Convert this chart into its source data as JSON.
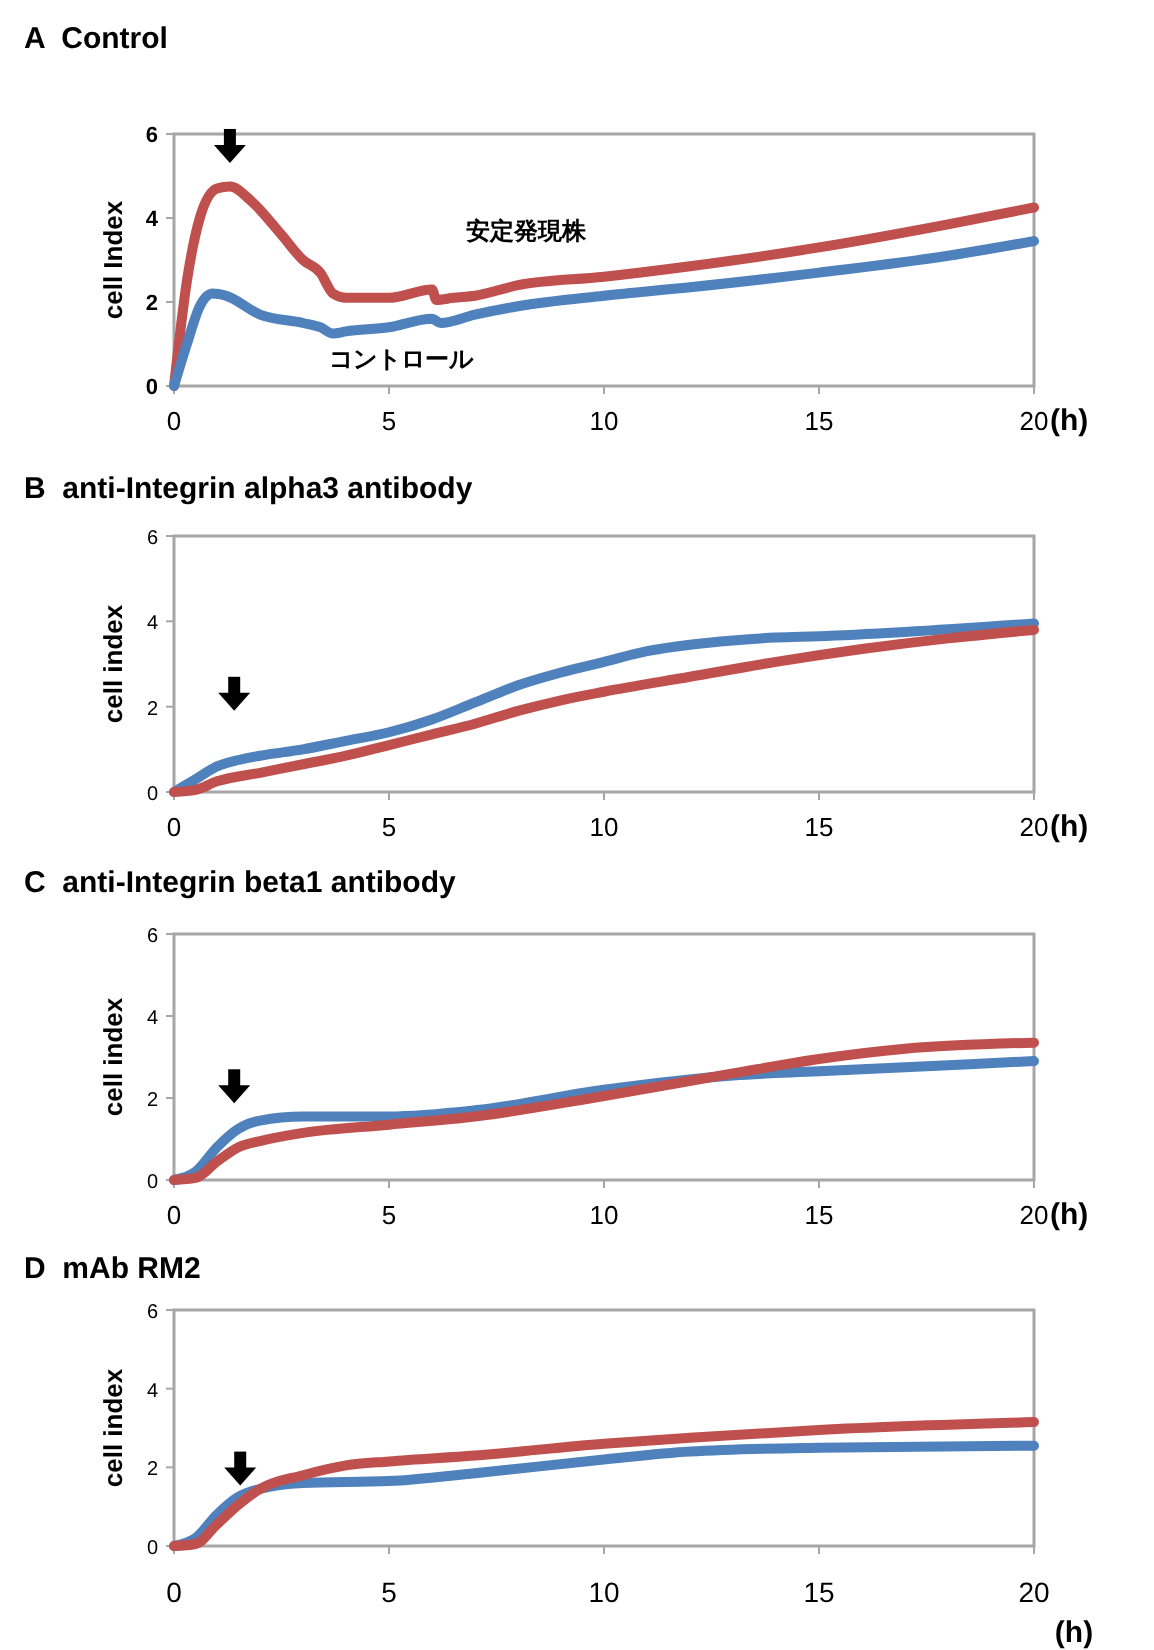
{
  "chart_data": [
    {
      "type": "line",
      "title": "A  Control",
      "xlabel": "(h)",
      "ylabel": "cell Index",
      "xlim": [
        0,
        20
      ],
      "xticks": [
        0,
        5,
        10,
        15,
        20
      ],
      "ylim": [
        0,
        6
      ],
      "yticks": [
        0,
        2,
        4,
        6
      ],
      "grid": false,
      "legend": false,
      "series": [
        {
          "name": "安定発現株",
          "color": "#c0504d",
          "x": [
            0,
            0.3,
            0.6,
            1.0,
            1.3,
            1.8,
            2.5,
            3.0,
            3.4,
            3.7,
            4,
            5,
            6,
            6.1,
            6.5,
            7,
            8,
            10,
            12,
            15,
            18,
            20
          ],
          "values": [
            0,
            2.5,
            4.0,
            4.7,
            4.75,
            4.4,
            3.6,
            3.0,
            2.7,
            2.2,
            2.1,
            2.1,
            2.3,
            2.05,
            2.1,
            2.15,
            2.4,
            2.6,
            2.85,
            3.3,
            3.85,
            4.25
          ]
        },
        {
          "name": "コントロール",
          "color": "#4f81bd",
          "x": [
            0,
            0.3,
            0.6,
            0.9,
            1.2,
            2,
            3,
            3.4,
            3.7,
            4,
            5,
            6,
            6.2,
            7,
            8,
            10,
            12,
            15,
            18,
            20
          ],
          "values": [
            0,
            1.0,
            1.9,
            2.2,
            2.15,
            1.7,
            1.5,
            1.4,
            1.25,
            1.3,
            1.4,
            1.6,
            1.5,
            1.7,
            1.9,
            2.15,
            2.35,
            2.7,
            3.1,
            3.45
          ]
        }
      ]
    },
    {
      "type": "line",
      "title": "B  anti-Integrin alpha3 antibody",
      "xlabel": "(h)",
      "ylabel": "cell index",
      "xlim": [
        0,
        20
      ],
      "xticks": [
        0,
        5,
        10,
        15,
        20
      ],
      "ylim": [
        0,
        6
      ],
      "yticks": [
        0,
        2,
        4,
        6
      ],
      "grid": false,
      "legend": false,
      "series": [
        {
          "color": "#4f81bd",
          "x": [
            0,
            0.5,
            1,
            1.5,
            2,
            3,
            4,
            5,
            6,
            7,
            8,
            9,
            10,
            11,
            12,
            13,
            14,
            15,
            17,
            20
          ],
          "values": [
            0,
            0.3,
            0.6,
            0.75,
            0.85,
            1.0,
            1.2,
            1.4,
            1.7,
            2.1,
            2.5,
            2.8,
            3.05,
            3.3,
            3.45,
            3.55,
            3.62,
            3.65,
            3.75,
            3.95
          ]
        },
        {
          "color": "#c0504d",
          "x": [
            0,
            0.5,
            1,
            2,
            3,
            4,
            5,
            6,
            7,
            8,
            9,
            10,
            12,
            14,
            16,
            18,
            20
          ],
          "values": [
            0,
            0.05,
            0.25,
            0.45,
            0.65,
            0.85,
            1.1,
            1.35,
            1.6,
            1.9,
            2.15,
            2.35,
            2.7,
            3.05,
            3.35,
            3.6,
            3.8
          ]
        }
      ]
    },
    {
      "type": "line",
      "title": "C  anti-Integrin beta1 antibody",
      "xlabel": "(h)",
      "ylabel": "cell index",
      "xlim": [
        0,
        20
      ],
      "xticks": [
        0,
        5,
        10,
        15,
        20
      ],
      "ylim": [
        0,
        6
      ],
      "yticks": [
        0,
        2,
        4,
        6
      ],
      "grid": false,
      "legend": false,
      "series": [
        {
          "color": "#4f81bd",
          "x": [
            0,
            0.5,
            1,
            1.5,
            2,
            3,
            5,
            7,
            10,
            13,
            15,
            17,
            20
          ],
          "values": [
            0,
            0.2,
            0.8,
            1.25,
            1.45,
            1.55,
            1.55,
            1.7,
            2.2,
            2.55,
            2.65,
            2.75,
            2.9
          ]
        },
        {
          "color": "#c0504d",
          "x": [
            0,
            0.5,
            1,
            1.5,
            2,
            3,
            5,
            7,
            10,
            13,
            15,
            17,
            20
          ],
          "values": [
            0,
            0.05,
            0.45,
            0.8,
            0.95,
            1.15,
            1.35,
            1.55,
            2.05,
            2.6,
            2.95,
            3.2,
            3.35
          ]
        }
      ]
    },
    {
      "type": "line",
      "title": "D  mAb RM2",
      "xlabel": "(h)",
      "ylabel": "cell index",
      "xlim": [
        0,
        20
      ],
      "xticks": [
        0,
        5,
        10,
        15,
        20
      ],
      "ylim": [
        0,
        6
      ],
      "yticks": [
        0,
        2,
        4,
        6
      ],
      "grid": false,
      "legend": false,
      "series": [
        {
          "color": "#4f81bd",
          "x": [
            0,
            0.5,
            1,
            1.5,
            2,
            3,
            5,
            7,
            10,
            12,
            15,
            20
          ],
          "values": [
            0,
            0.2,
            0.8,
            1.25,
            1.45,
            1.6,
            1.65,
            1.85,
            2.2,
            2.4,
            2.5,
            2.55
          ]
        },
        {
          "color": "#c0504d",
          "x": [
            0,
            0.5,
            1,
            1.5,
            2,
            3,
            4,
            5,
            7,
            10,
            12,
            15,
            20
          ],
          "values": [
            0,
            0.05,
            0.55,
            1.05,
            1.45,
            1.8,
            2.05,
            2.15,
            2.3,
            2.6,
            2.75,
            2.95,
            3.15
          ]
        }
      ]
    }
  ]
}
